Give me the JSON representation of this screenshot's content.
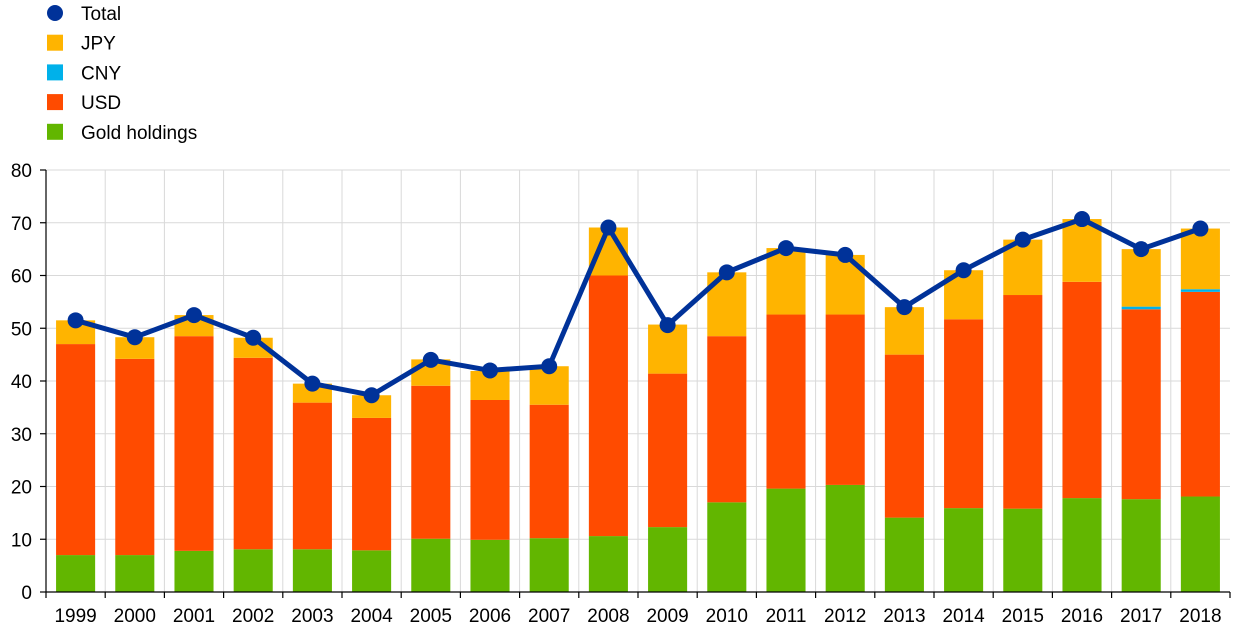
{
  "chart_data": {
    "type": "bar",
    "stacked": true,
    "title": "",
    "xlabel": "",
    "ylabel": "",
    "ylim": [
      0,
      80
    ],
    "yticks": [
      0,
      10,
      20,
      30,
      40,
      50,
      60,
      70,
      80
    ],
    "grid": true,
    "legend_position": "top-left",
    "categories": [
      "1999",
      "2000",
      "2001",
      "2002",
      "2003",
      "2004",
      "2005",
      "2006",
      "2007",
      "2008",
      "2009",
      "2010",
      "2011",
      "2012",
      "2013",
      "2014",
      "2015",
      "2016",
      "2017",
      "2018"
    ],
    "series": [
      {
        "name": "Gold holdings",
        "kind": "bar",
        "color": "#62b600",
        "values": [
          7.0,
          7.0,
          7.8,
          8.1,
          8.1,
          7.9,
          10.1,
          9.9,
          10.2,
          10.6,
          12.3,
          17.0,
          19.6,
          20.3,
          14.1,
          15.9,
          15.8,
          17.8,
          17.6,
          18.1
        ]
      },
      {
        "name": "USD",
        "kind": "bar",
        "color": "#ff4b00",
        "values": [
          40.0,
          37.2,
          40.7,
          36.3,
          27.8,
          25.1,
          29.0,
          26.5,
          25.3,
          49.4,
          29.1,
          31.5,
          33.0,
          32.3,
          30.9,
          35.8,
          40.5,
          41.0,
          36.0,
          38.8
        ]
      },
      {
        "name": "CNY",
        "kind": "bar",
        "color": "#00b1ea",
        "values": [
          0,
          0,
          0,
          0,
          0,
          0,
          0,
          0,
          0,
          0,
          0,
          0,
          0,
          0,
          0,
          0,
          0,
          0,
          0.5,
          0.5
        ]
      },
      {
        "name": "JPY",
        "kind": "bar",
        "color": "#ffb400",
        "values": [
          4.5,
          4.1,
          4.0,
          3.8,
          3.6,
          4.3,
          5.0,
          5.5,
          7.3,
          9.1,
          9.3,
          12.1,
          12.6,
          11.3,
          9.0,
          9.3,
          10.5,
          11.9,
          10.9,
          11.5
        ]
      },
      {
        "name": "Total",
        "kind": "line",
        "color": "#003299",
        "values": [
          51.5,
          48.3,
          52.5,
          48.2,
          39.5,
          37.3,
          44.0,
          42.0,
          42.8,
          69.1,
          50.6,
          60.6,
          65.2,
          63.9,
          54.0,
          61.0,
          66.8,
          70.7,
          65.0,
          68.9
        ]
      }
    ],
    "legend_order": [
      "Total",
      "JPY",
      "CNY",
      "USD",
      "Gold holdings"
    ]
  }
}
